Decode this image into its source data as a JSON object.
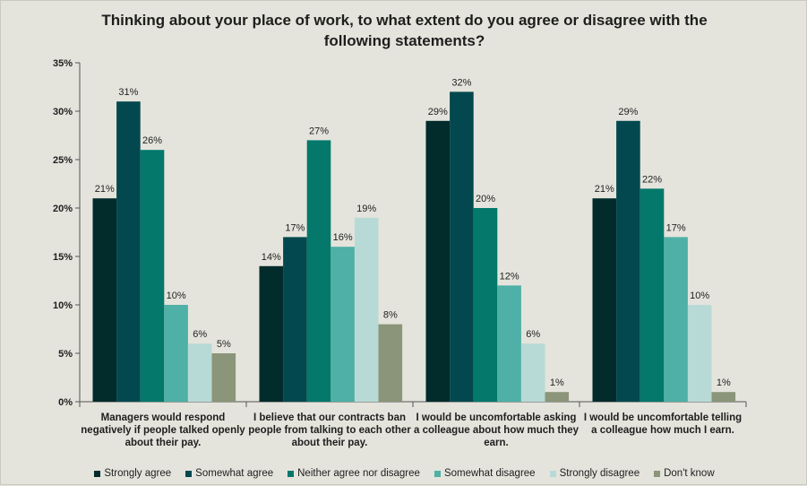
{
  "chart_data": {
    "type": "bar",
    "title": [
      "Thinking about your place of work, to what extent do you agree or disagree with the",
      "following statements?"
    ],
    "categories": [
      [
        "Managers would respond",
        "negatively if people talked openly",
        "about their pay."
      ],
      [
        "I believe that our contracts ban",
        "people from talking to each other",
        "about their pay."
      ],
      [
        "I would be uncomfortable asking",
        "a colleague about how much they",
        "earn."
      ],
      [
        "I would be uncomfortable telling",
        "a colleague how much I earn."
      ]
    ],
    "series": [
      {
        "name": "Strongly agree",
        "color": "#022b2b",
        "values": [
          21,
          14,
          29,
          21
        ],
        "labels": [
          "21%",
          "14%",
          "29%",
          "21%"
        ]
      },
      {
        "name": "Somewhat agree",
        "color": "#03484f",
        "values": [
          31,
          17,
          32,
          29
        ],
        "labels": [
          "31%",
          "17%",
          "32%",
          "29%"
        ]
      },
      {
        "name": "Neither agree nor disagree",
        "color": "#03786b",
        "values": [
          26,
          27,
          20,
          22
        ],
        "labels": [
          "26%",
          "27%",
          "20%",
          "22%"
        ]
      },
      {
        "name": "Somewhat disagree",
        "color": "#4eb0a6",
        "values": [
          10,
          16,
          12,
          17
        ],
        "labels": [
          "10%",
          "16%",
          "12%",
          "17%"
        ]
      },
      {
        "name": "Strongly disagree",
        "color": "#b7dad6",
        "values": [
          6,
          19,
          6,
          10
        ],
        "labels": [
          "6%",
          "19%",
          "6%",
          "10%"
        ]
      },
      {
        "name": "Don't know",
        "color": "#8b9579",
        "values": [
          5,
          8,
          1,
          1
        ],
        "labels": [
          "5%",
          "8%",
          "1%",
          "1%"
        ]
      }
    ],
    "ylim": [
      0,
      35
    ],
    "yticks": [
      {
        "value": 0,
        "label": "0%"
      },
      {
        "value": 5,
        "label": "5%"
      },
      {
        "value": 10,
        "label": "10%"
      },
      {
        "value": 15,
        "label": "15%"
      },
      {
        "value": 20,
        "label": "20%"
      },
      {
        "value": 25,
        "label": "25%"
      },
      {
        "value": 30,
        "label": "30%"
      },
      {
        "value": 35,
        "label": "35%"
      }
    ],
    "grid": false,
    "legend": "bottom"
  }
}
